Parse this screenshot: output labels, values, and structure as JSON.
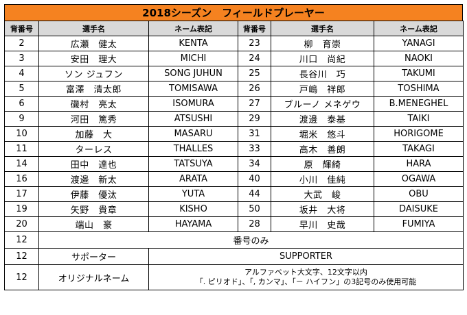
{
  "title": "2018シーズン　フィールドプレーヤー",
  "headers": {
    "number": "背番号",
    "name": "選手名",
    "name_mark": "ネーム表記"
  },
  "players": [
    {
      "l_no": "2",
      "l_name": "広瀬　健太",
      "l_mark": "KENTA",
      "r_no": "23",
      "r_name": "柳　育崇",
      "r_mark": "YANAGI"
    },
    {
      "l_no": "3",
      "l_name": "安田　理大",
      "l_mark": "MICHI",
      "r_no": "24",
      "r_name": "川口　尚紀",
      "r_mark": "NAOKI"
    },
    {
      "l_no": "4",
      "l_name": "ソン ジュフン",
      "l_mark": "SONG JUHUN",
      "r_no": "25",
      "r_name": "長谷川　巧",
      "r_mark": "TAKUMI"
    },
    {
      "l_no": "5",
      "l_name": "富澤　清太郎",
      "l_mark": "TOMISAWA",
      "r_no": "26",
      "r_name": "戸嶋　祥郎",
      "r_mark": "TOSHIMA"
    },
    {
      "l_no": "6",
      "l_name": "磯村　亮太",
      "l_mark": "ISOMURA",
      "r_no": "27",
      "r_name": "ブルーノ メネゲウ",
      "r_mark": "B.MENEGHEL"
    },
    {
      "l_no": "9",
      "l_name": "河田　篤秀",
      "l_mark": "ATSUSHI",
      "r_no": "29",
      "r_name": "渡邊　泰基",
      "r_mark": "TAIKI"
    },
    {
      "l_no": "10",
      "l_name": "加藤　大",
      "l_mark": "MASARU",
      "r_no": "31",
      "r_name": "堀米　悠斗",
      "r_mark": "HORIGOME"
    },
    {
      "l_no": "11",
      "l_name": "ターレス",
      "l_mark": "THALLES",
      "r_no": "33",
      "r_name": "高木　善朗",
      "r_mark": "TAKAGI"
    },
    {
      "l_no": "14",
      "l_name": "田中　達也",
      "l_mark": "TATSUYA",
      "r_no": "34",
      "r_name": "原　輝綺",
      "r_mark": "HARA"
    },
    {
      "l_no": "16",
      "l_name": "渡邉　新太",
      "l_mark": "ARATA",
      "r_no": "40",
      "r_name": "小川　佳純",
      "r_mark": "OGAWA"
    },
    {
      "l_no": "17",
      "l_name": "伊藤　優汰",
      "l_mark": "YUTA",
      "r_no": "44",
      "r_name": "大武　峻",
      "r_mark": "OBU"
    },
    {
      "l_no": "19",
      "l_name": "矢野　貴章",
      "l_mark": "KISHO",
      "r_no": "50",
      "r_name": "坂井　大将",
      "r_mark": "DAISUKE"
    },
    {
      "l_no": "20",
      "l_name": "端山　豪",
      "l_mark": "HAYAMA",
      "r_no": "28",
      "r_name": "早川　史哉",
      "r_mark": "FUMIYA"
    }
  ],
  "footer": {
    "number_only": {
      "no": "12",
      "label": "番号のみ"
    },
    "supporter": {
      "no": "12",
      "name": "サポーター",
      "mark": "SUPPORTER"
    },
    "original": {
      "no": "12",
      "name": "オリジナルネーム",
      "note1": "アルファベット大文字、12文字以内",
      "note2": "「. ピリオド」、「, カンマ」、「－ ハイフン」の3記号のみ使用可能"
    }
  }
}
